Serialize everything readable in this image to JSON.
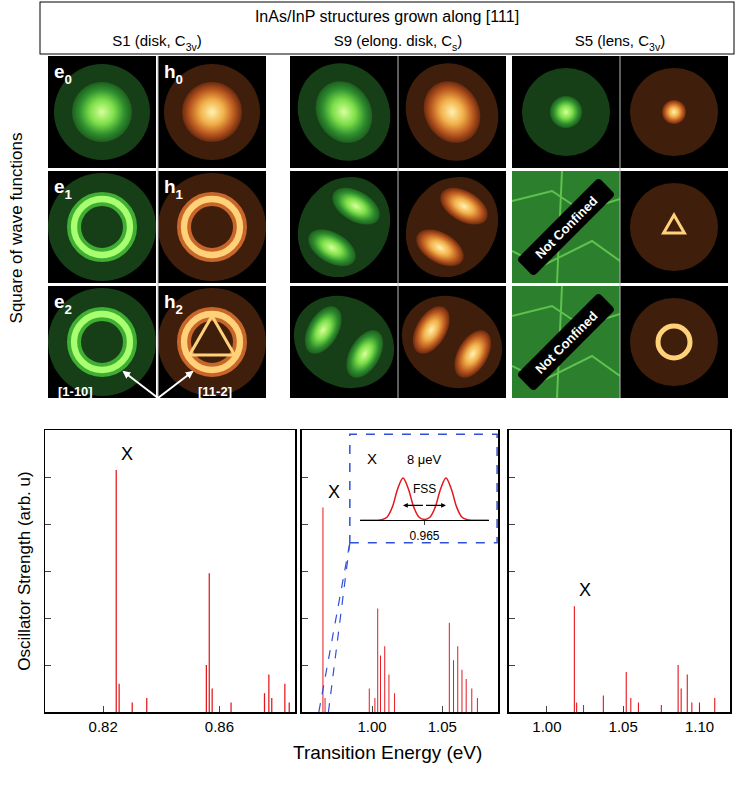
{
  "header": {
    "title": "InAs/InP structures grown along [111]",
    "columns": [
      "S1 (disk, C3v)",
      "S9 (elong. disk, Cs)",
      "S5 (lens, C3v)"
    ]
  },
  "wave_functions": {
    "label": "Square of wave functions",
    "states": [
      "e0",
      "h0",
      "e1",
      "h1",
      "e2",
      "h2"
    ],
    "directions": [
      "[1-10]",
      "[11-2]"
    ],
    "not_confined_text": "Not Confined",
    "not_confined": [
      [],
      [],
      [
        "e1",
        "e2"
      ]
    ]
  },
  "xlabel": "Transition Energy (eV)",
  "chart_data": [
    {
      "type": "bar",
      "ylabel": "Oscillator Strength (arb. u)",
      "color": "#e4161c",
      "x": [
        0.8245,
        0.8255,
        0.83,
        0.835,
        0.8555,
        0.8565,
        0.8575,
        0.864,
        0.8755,
        0.877,
        0.878,
        0.8825,
        0.884
      ],
      "values": [
        5.15,
        0.6,
        0.2,
        0.3,
        1.0,
        2.95,
        0.5,
        0.2,
        0.4,
        0.8,
        0.3,
        0.6,
        0.2
      ],
      "xlim": [
        0.8,
        0.886
      ],
      "xticks": [
        0.82,
        0.86
      ],
      "ylim": [
        0,
        6
      ],
      "yticks": [
        0,
        1,
        2,
        3,
        4,
        5,
        6
      ],
      "tick_labels": "x",
      "grid": false,
      "annotations": [
        {
          "text": "X",
          "x": 0.8245,
          "y": 5.15
        }
      ]
    },
    {
      "type": "bar",
      "color": "#e4161c",
      "x": [
        0.965,
        0.9665,
        0.998,
        1.002,
        1.004,
        1.006,
        1.009,
        1.012,
        1.016,
        1.055,
        1.058,
        1.061,
        1.064,
        1.067,
        1.071,
        1.075
      ],
      "values": [
        4.35,
        0.3,
        0.5,
        0.3,
        2.2,
        1.2,
        1.4,
        0.8,
        0.4,
        1.9,
        1.1,
        1.4,
        0.9,
        0.7,
        0.5,
        0.3
      ],
      "xlim": [
        0.95,
        1.09
      ],
      "xticks": [
        {
          "value": 1.0,
          "label": "1.00"
        },
        {
          "value": 1.05,
          "label": "1.05"
        }
      ],
      "ylim": [
        0,
        6
      ],
      "yticks": [
        0,
        1,
        2,
        3,
        4,
        5,
        6
      ],
      "tick_labels": "x",
      "grid": false,
      "annotations": [
        {
          "text": "X",
          "x": 0.965,
          "y": 4.35
        }
      ],
      "inset": {
        "type": "line",
        "color": "#e4161c",
        "x": [
          0.964988,
          0.964989,
          0.96499,
          0.964991,
          0.964992,
          0.964993,
          0.964994,
          0.964995,
          0.964996,
          0.964997,
          0.964998,
          0.964999,
          0.965,
          0.965001,
          0.965002,
          0.965003,
          0.965004,
          0.965005,
          0.965006,
          0.965007,
          0.965008,
          0.965009,
          0.96501,
          0.965011,
          0.965012
        ],
        "values": [
          0,
          0,
          0,
          0,
          0.01,
          0.07,
          0.31,
          0.74,
          1,
          0.74,
          0.31,
          0.07,
          0.02,
          0.07,
          0.31,
          0.74,
          1,
          0.74,
          0.31,
          0.07,
          0.01,
          0,
          0,
          0,
          0
        ],
        "xlim": [
          0.964988,
          0.965012
        ],
        "xticks": [
          0.965
        ],
        "ylim": [
          0,
          1.2
        ],
        "tick_labels": "x",
        "grid": false,
        "annotations": [
          {
            "text": "X",
            "x": 0.964989,
            "y": 1.2
          },
          {
            "text": "8 μeV",
            "x": 0.965,
            "y": 1.2
          },
          {
            "text": "FSS",
            "x": 0.965,
            "y": 0.75,
            "arrow_x": [
              0.964996,
              0.965004
            ],
            "arrow_y": 0.35
          }
        ]
      }
    },
    {
      "type": "bar",
      "color": "#e4161c",
      "x": [
        1.018,
        1.0195,
        1.024,
        1.037,
        1.052,
        1.055,
        1.06,
        1.075,
        1.086,
        1.088,
        1.092,
        1.095,
        1.1,
        1.11
      ],
      "values": [
        2.25,
        0.2,
        0.15,
        0.35,
        0.85,
        0.3,
        0.2,
        0.15,
        1.0,
        0.5,
        0.8,
        0.2,
        0.2,
        0.3
      ],
      "xlim": [
        0.975,
        1.12
      ],
      "xticks": [
        {
          "value": 1.0,
          "label": "1.00"
        },
        {
          "value": 1.05,
          "label": "1.05"
        },
        {
          "value": 1.1,
          "label": "1.10"
        }
      ],
      "ylim": [
        0,
        6
      ],
      "yticks": [
        0,
        1,
        2,
        3,
        4,
        5,
        6
      ],
      "tick_labels": "x",
      "grid": false,
      "annotations": [
        {
          "text": "X",
          "x": 1.018,
          "y": 2.25
        }
      ]
    }
  ]
}
